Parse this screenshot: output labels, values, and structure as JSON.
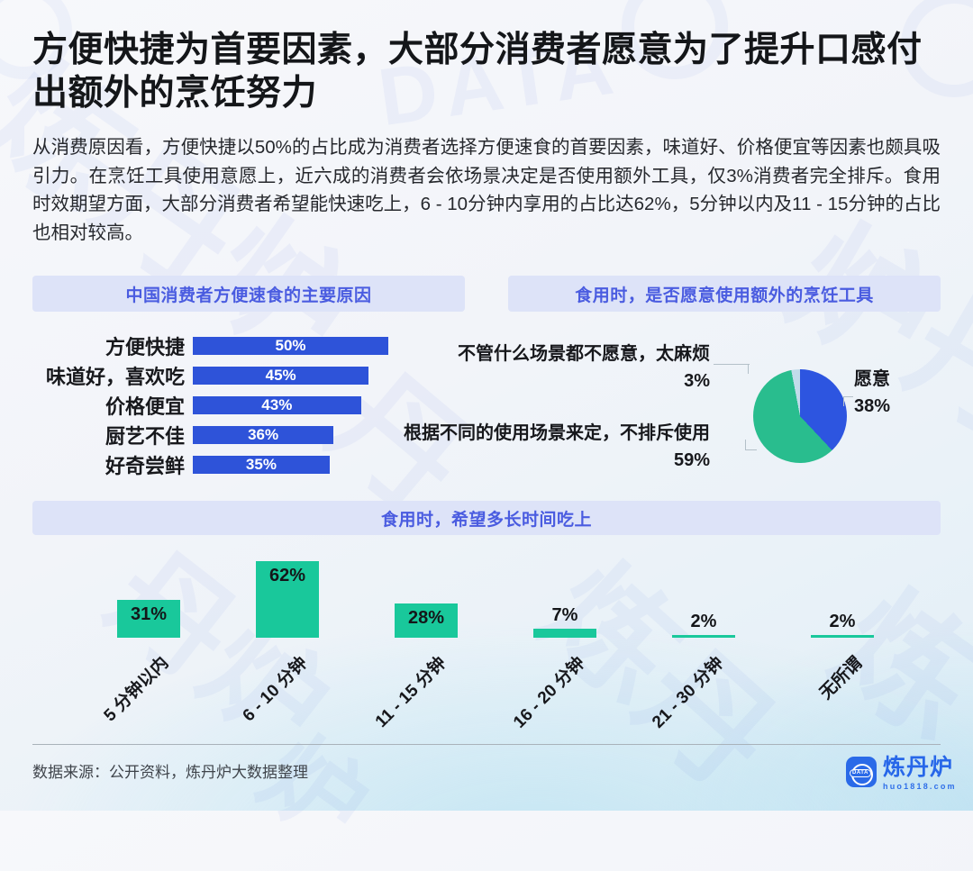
{
  "page": {
    "title": "方便快捷为首要因素，大部分消费者愿意为了提升口感付出额外的烹饪努力",
    "intro": "从消费原因看，方便快捷以50%的占比成为消费者选择方便速食的首要因素，味道好、价格便宜等因素也颇具吸引力。在烹饪工具使用意愿上，近六成的消费者会依场景决定是否使用额外工具，仅3%消费者完全排斥。食用时效期望方面，大部分消费者希望能快速吃上，6 - 10分钟内享用的占比达62%，5分钟以内及11 - 15分钟的占比也相对较高。",
    "footer": {
      "source": "数据来源：公开资料，炼丹炉大数据整理",
      "brand_name": "炼丹炉",
      "brand_site": "huo1818.com",
      "brand_icon_text": "DATA"
    }
  },
  "colors": {
    "bar_blue": "#2e53d9",
    "pie_blue": "#2d55e0",
    "pie_green": "#29bd8e",
    "pie_pale": "#c2dcea",
    "column_green": "#19c89b",
    "pill_bg": "#dde3f8",
    "pill_text": "#4a5ce0"
  },
  "chart_data": [
    {
      "type": "bar",
      "orientation": "horizontal",
      "title": "中国消费者方便速食的主要原因",
      "categories": [
        "方便快捷",
        "味道好，喜欢吃",
        "价格便宜",
        "厨艺不佳",
        "好奇尝鲜"
      ],
      "values": [
        50,
        45,
        43,
        36,
        35
      ],
      "unit": "%",
      "xlim": [
        0,
        50
      ],
      "bar_color": "#2e53d9",
      "value_label_position": "inside-center-white"
    },
    {
      "type": "pie",
      "title": "食用时，是否愿意使用额外的烹饪工具",
      "start_angle_deg": 0,
      "direction": "clockwise",
      "unit": "%",
      "slices": [
        {
          "label": "愿意",
          "value": 38,
          "color": "#2d55e0"
        },
        {
          "label": "根据不同的使用场景来定，不排斥使用",
          "value": 59,
          "color": "#29bd8e"
        },
        {
          "label": "不管什么场景都不愿意，太麻烦",
          "value": 3,
          "color": "#c2dcea"
        }
      ]
    },
    {
      "type": "bar",
      "orientation": "vertical",
      "title": "食用时，希望多长时间吃上",
      "categories": [
        "5 分钟以内",
        "6 - 10 分钟",
        "11 - 15 分钟",
        "16 - 20 分钟",
        "21 - 30 分钟",
        "无所谓"
      ],
      "values": [
        31,
        62,
        28,
        7,
        2,
        2
      ],
      "unit": "%",
      "ylim": [
        0,
        62
      ],
      "bar_color": "#19c89b",
      "value_label_position": "inside-top-or-above",
      "category_label_rotation_deg": -45
    }
  ]
}
